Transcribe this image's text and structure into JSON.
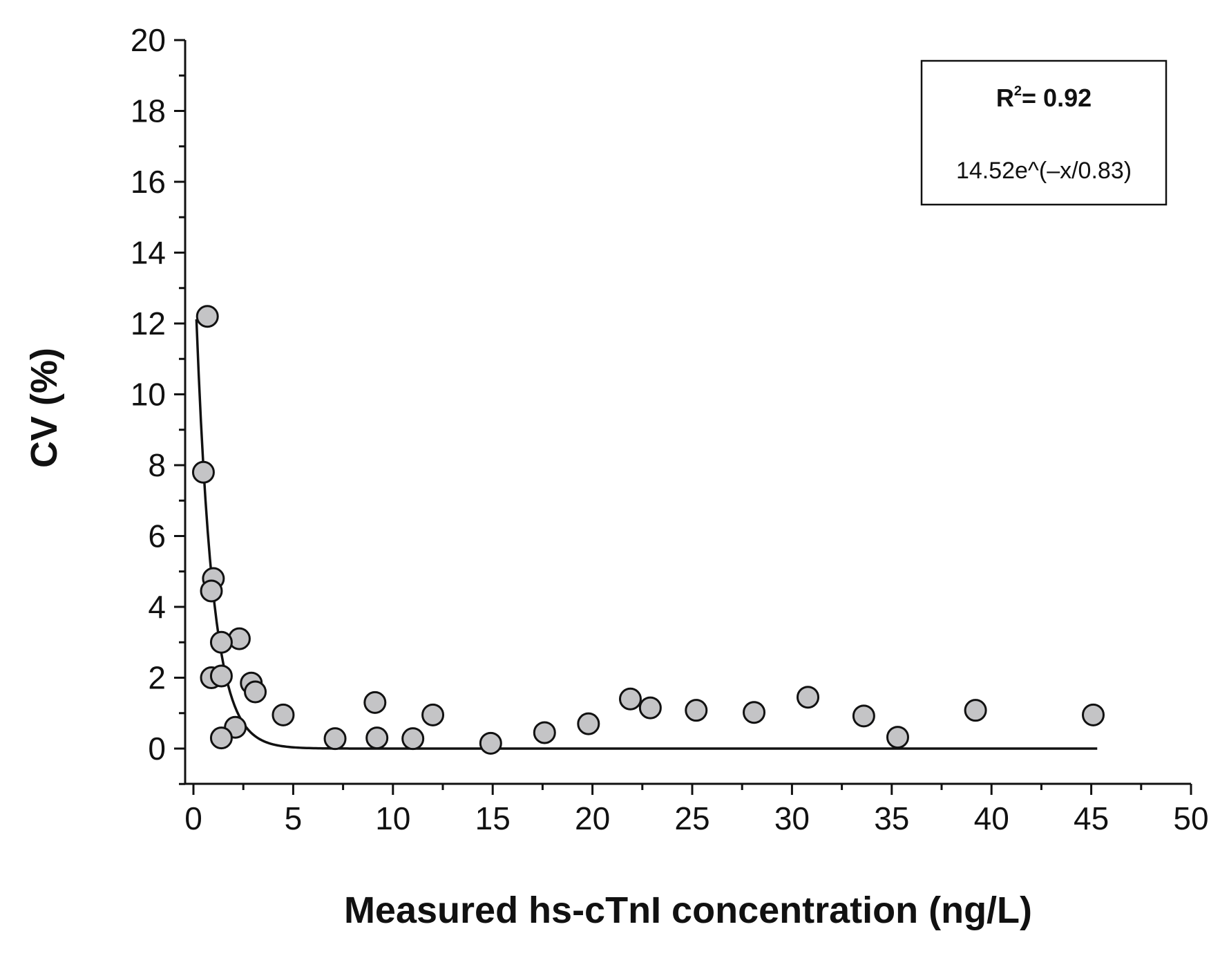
{
  "chart_data": {
    "type": "scatter",
    "title": "",
    "xlabel": "Measured hs-cTnI concentration (ng/L)",
    "ylabel": "CV (%)",
    "xlim": [
      0,
      50
    ],
    "ylim": [
      -1,
      20
    ],
    "x_ticks": [
      0,
      5,
      10,
      15,
      20,
      25,
      30,
      35,
      40,
      45,
      50
    ],
    "y_ticks": [
      0,
      2,
      4,
      6,
      8,
      10,
      12,
      14,
      16,
      18,
      20
    ],
    "x_tick_labels": [
      "0",
      "5",
      "10",
      "15",
      "20",
      "25",
      "30",
      "35",
      "40",
      "45",
      "50"
    ],
    "y_tick_labels": [
      "0",
      "2",
      "4",
      "6",
      "8",
      "10",
      "12",
      "14",
      "16",
      "18",
      "20"
    ],
    "grid": false,
    "marker_color": "#c4c4c6",
    "line_color": "#111111",
    "series": [
      {
        "name": "CV",
        "points": [
          {
            "x": 0.7,
            "y": 12.2
          },
          {
            "x": 0.5,
            "y": 7.8
          },
          {
            "x": 1.0,
            "y": 4.8
          },
          {
            "x": 0.9,
            "y": 4.45
          },
          {
            "x": 2.3,
            "y": 3.1
          },
          {
            "x": 1.4,
            "y": 3.0
          },
          {
            "x": 0.9,
            "y": 2.0
          },
          {
            "x": 1.4,
            "y": 2.05
          },
          {
            "x": 2.9,
            "y": 1.85
          },
          {
            "x": 3.1,
            "y": 1.6
          },
          {
            "x": 2.1,
            "y": 0.6
          },
          {
            "x": 1.4,
            "y": 0.3
          },
          {
            "x": 4.5,
            "y": 0.95
          },
          {
            "x": 7.1,
            "y": 0.28
          },
          {
            "x": 9.1,
            "y": 1.3
          },
          {
            "x": 9.2,
            "y": 0.3
          },
          {
            "x": 11.0,
            "y": 0.28
          },
          {
            "x": 12.0,
            "y": 0.95
          },
          {
            "x": 14.9,
            "y": 0.15
          },
          {
            "x": 17.6,
            "y": 0.45
          },
          {
            "x": 19.8,
            "y": 0.7
          },
          {
            "x": 21.9,
            "y": 1.4
          },
          {
            "x": 22.9,
            "y": 1.15
          },
          {
            "x": 25.2,
            "y": 1.08
          },
          {
            "x": 28.1,
            "y": 1.02
          },
          {
            "x": 30.8,
            "y": 1.45
          },
          {
            "x": 33.6,
            "y": 0.92
          },
          {
            "x": 35.3,
            "y": 0.32
          },
          {
            "x": 39.2,
            "y": 1.08
          },
          {
            "x": 45.1,
            "y": 0.95
          }
        ]
      }
    ],
    "fit": {
      "equation": "14.52e^(–x/0.83)",
      "r2_label": "R",
      "r2_superscript": "2",
      "r2_value": "= 0.92",
      "a": 14.52,
      "t": 0.83,
      "x_range": [
        0.15,
        45.3
      ]
    },
    "legend_position": "top-right"
  }
}
